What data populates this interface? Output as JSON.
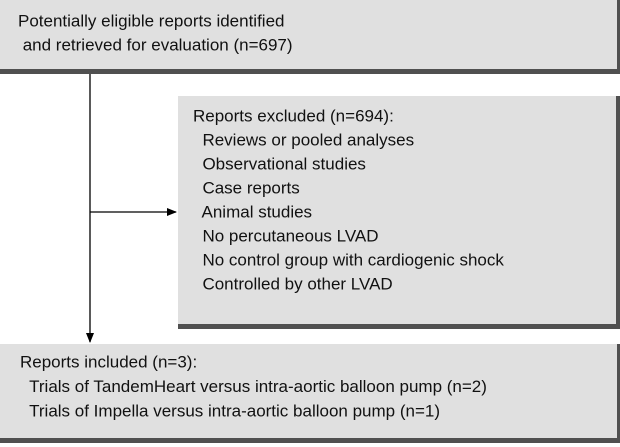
{
  "nodes": [
    {
      "lines": [
        "Potentially eligible reports identified",
        " and retrieved for evaluation (n=697)"
      ]
    },
    {
      "lines": [
        "Reports excluded (n=694):",
        "  Reviews or pooled analyses",
        "  Observational studies",
        "  Case reports",
        "  Animal studies",
        "  No percutaneous LVAD",
        "  No control group with cardiogenic shock",
        "  Controlled by other LVAD"
      ]
    },
    {
      "lines": [
        "Reports included (n=3):",
        "  Trials of TandemHeart versus intra-aortic balloon pump (n=2)",
        "  Trials of Impella versus intra-aortic balloon pump (n=1)"
      ]
    }
  ]
}
